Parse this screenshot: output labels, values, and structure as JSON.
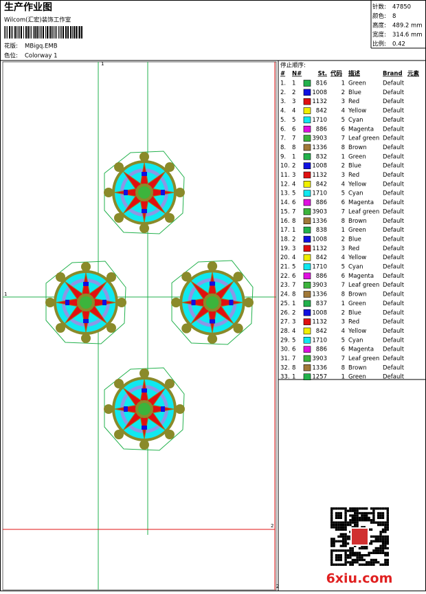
{
  "header": {
    "title": "生产作业图",
    "company": "Wilcom(汇宏)装饰工作室",
    "design_label": "花版:",
    "design": "MBigq.EMB",
    "colorway_label": "色位:",
    "colorway": "Colorway 1"
  },
  "stats": [
    {
      "label": "针数:",
      "value": "47850"
    },
    {
      "label": "颜色:",
      "value": "8"
    },
    {
      "label": "高度:",
      "value": "489.2 mm"
    },
    {
      "label": "宽度:",
      "value": "314.6 mm"
    },
    {
      "label": "比例:",
      "value": "0.42"
    }
  ],
  "design_area": {
    "markers": [
      "1",
      "1",
      "2",
      "2"
    ]
  },
  "table": {
    "heading": "停止顺序:",
    "columns": [
      "#",
      "N#",
      "St.",
      "代码",
      "描述",
      "Brand",
      "元素"
    ],
    "rows": [
      {
        "no": "1.",
        "needle": 1,
        "stitches": 816,
        "code": 1,
        "description": "Green",
        "brand": "Default",
        "swatch": "#22b14c"
      },
      {
        "no": "2.",
        "needle": 2,
        "stitches": 1008,
        "code": 2,
        "description": "Blue",
        "brand": "Default",
        "swatch": "#1010e0"
      },
      {
        "no": "3.",
        "needle": 3,
        "stitches": 1132,
        "code": 3,
        "description": "Red",
        "brand": "Default",
        "swatch": "#e01010"
      },
      {
        "no": "4.",
        "needle": 4,
        "stitches": 842,
        "code": 4,
        "description": "Yellow",
        "brand": "Default",
        "swatch": "#f0f000"
      },
      {
        "no": "5.",
        "needle": 5,
        "stitches": 1710,
        "code": 5,
        "description": "Cyan",
        "brand": "Default",
        "swatch": "#10e8f0"
      },
      {
        "no": "6.",
        "needle": 6,
        "stitches": 886,
        "code": 6,
        "description": "Magenta",
        "brand": "Default",
        "swatch": "#e010e0"
      },
      {
        "no": "7.",
        "needle": 7,
        "stitches": 3903,
        "code": 7,
        "description": "Leaf green",
        "brand": "Default",
        "swatch": "#3cb43c"
      },
      {
        "no": "8.",
        "needle": 8,
        "stitches": 1336,
        "code": 8,
        "description": "Brown",
        "brand": "Default",
        "swatch": "#a07838"
      },
      {
        "no": "9.",
        "needle": 1,
        "stitches": 832,
        "code": 1,
        "description": "Green",
        "brand": "Default",
        "swatch": "#22b14c"
      },
      {
        "no": "10.",
        "needle": 2,
        "stitches": 1008,
        "code": 2,
        "description": "Blue",
        "brand": "Default",
        "swatch": "#1010e0"
      },
      {
        "no": "11.",
        "needle": 3,
        "stitches": 1132,
        "code": 3,
        "description": "Red",
        "brand": "Default",
        "swatch": "#e01010"
      },
      {
        "no": "12.",
        "needle": 4,
        "stitches": 842,
        "code": 4,
        "description": "Yellow",
        "brand": "Default",
        "swatch": "#f0f000"
      },
      {
        "no": "13.",
        "needle": 5,
        "stitches": 1710,
        "code": 5,
        "description": "Cyan",
        "brand": "Default",
        "swatch": "#10e8f0"
      },
      {
        "no": "14.",
        "needle": 6,
        "stitches": 886,
        "code": 6,
        "description": "Magenta",
        "brand": "Default",
        "swatch": "#e010e0"
      },
      {
        "no": "15.",
        "needle": 7,
        "stitches": 3903,
        "code": 7,
        "description": "Leaf green",
        "brand": "Default",
        "swatch": "#3cb43c"
      },
      {
        "no": "16.",
        "needle": 8,
        "stitches": 1336,
        "code": 8,
        "description": "Brown",
        "brand": "Default",
        "swatch": "#a07838"
      },
      {
        "no": "17.",
        "needle": 1,
        "stitches": 838,
        "code": 1,
        "description": "Green",
        "brand": "Default",
        "swatch": "#22b14c"
      },
      {
        "no": "18.",
        "needle": 2,
        "stitches": 1008,
        "code": 2,
        "description": "Blue",
        "brand": "Default",
        "swatch": "#1010e0"
      },
      {
        "no": "19.",
        "needle": 3,
        "stitches": 1132,
        "code": 3,
        "description": "Red",
        "brand": "Default",
        "swatch": "#e01010"
      },
      {
        "no": "20.",
        "needle": 4,
        "stitches": 842,
        "code": 4,
        "description": "Yellow",
        "brand": "Default",
        "swatch": "#f0f000"
      },
      {
        "no": "21.",
        "needle": 5,
        "stitches": 1710,
        "code": 5,
        "description": "Cyan",
        "brand": "Default",
        "swatch": "#10e8f0"
      },
      {
        "no": "22.",
        "needle": 6,
        "stitches": 886,
        "code": 6,
        "description": "Magenta",
        "brand": "Default",
        "swatch": "#e010e0"
      },
      {
        "no": "23.",
        "needle": 7,
        "stitches": 3903,
        "code": 7,
        "description": "Leaf green",
        "brand": "Default",
        "swatch": "#3cb43c"
      },
      {
        "no": "24.",
        "needle": 8,
        "stitches": 1336,
        "code": 8,
        "description": "Brown",
        "brand": "Default",
        "swatch": "#a07838"
      },
      {
        "no": "25.",
        "needle": 1,
        "stitches": 837,
        "code": 1,
        "description": "Green",
        "brand": "Default",
        "swatch": "#22b14c"
      },
      {
        "no": "26.",
        "needle": 2,
        "stitches": 1008,
        "code": 2,
        "description": "Blue",
        "brand": "Default",
        "swatch": "#1010e0"
      },
      {
        "no": "27.",
        "needle": 3,
        "stitches": 1132,
        "code": 3,
        "description": "Red",
        "brand": "Default",
        "swatch": "#e01010"
      },
      {
        "no": "28.",
        "needle": 4,
        "stitches": 842,
        "code": 4,
        "description": "Yellow",
        "brand": "Default",
        "swatch": "#f0f000"
      },
      {
        "no": "29.",
        "needle": 5,
        "stitches": 1710,
        "code": 5,
        "description": "Cyan",
        "brand": "Default",
        "swatch": "#10e8f0"
      },
      {
        "no": "30.",
        "needle": 6,
        "stitches": 886,
        "code": 6,
        "description": "Magenta",
        "brand": "Default",
        "swatch": "#e010e0"
      },
      {
        "no": "31.",
        "needle": 7,
        "stitches": 3903,
        "code": 7,
        "description": "Leaf green",
        "brand": "Default",
        "swatch": "#3cb43c"
      },
      {
        "no": "32.",
        "needle": 8,
        "stitches": 1336,
        "code": 8,
        "description": "Brown",
        "brand": "Default",
        "swatch": "#a07838"
      },
      {
        "no": "33.",
        "needle": 1,
        "stitches": 1257,
        "code": 1,
        "description": "Green",
        "brand": "Default",
        "swatch": "#22b14c"
      }
    ]
  },
  "watermark": "6xiu.com"
}
